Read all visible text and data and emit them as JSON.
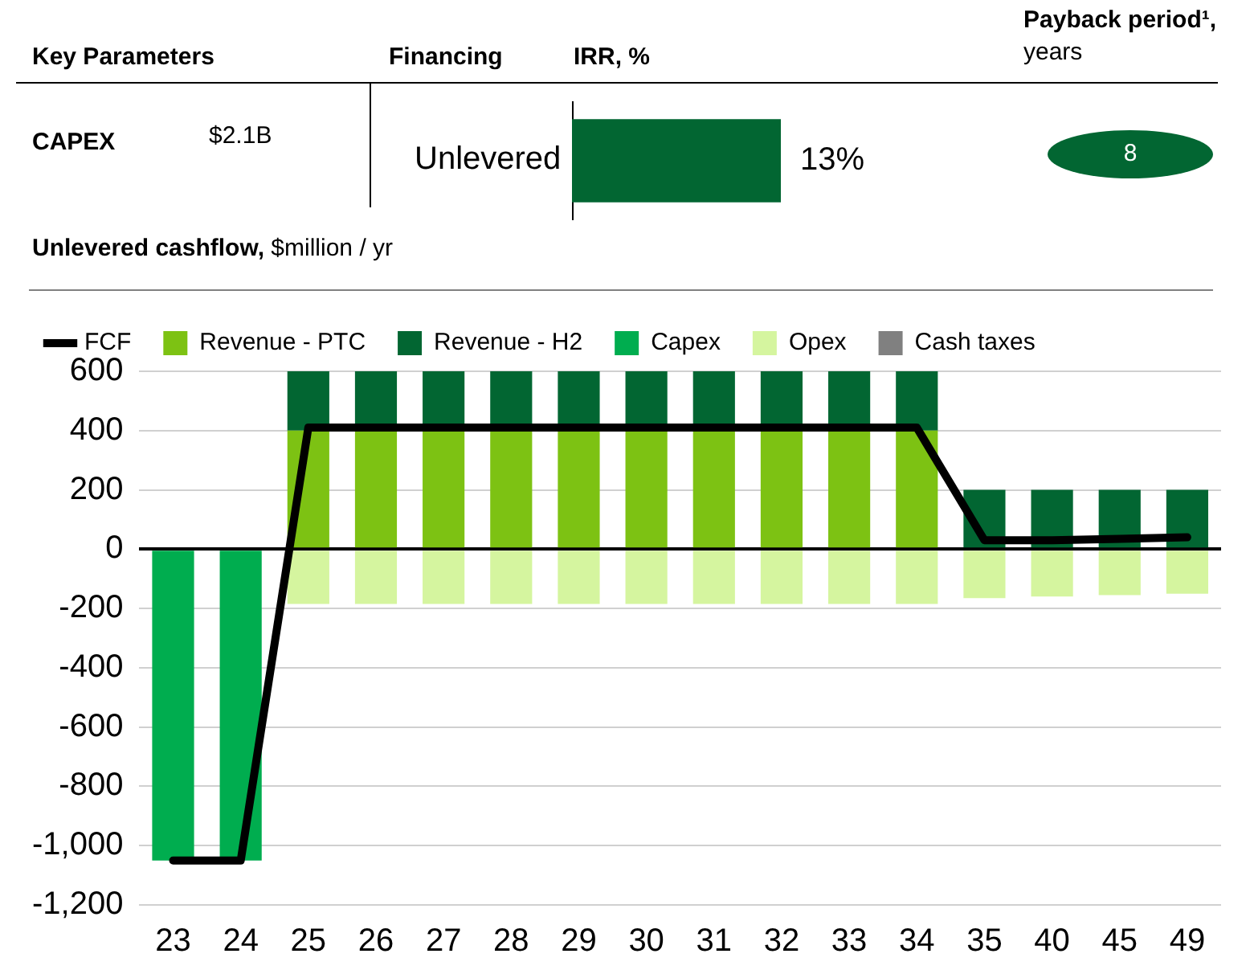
{
  "chart_data": [
    {
      "type": "other",
      "annotations": [
        "Key Parameters",
        "Financing",
        "Payback period¹,",
        "years",
        "CAPEX",
        "$2.1B",
        "8"
      ]
    },
    {
      "type": "bar",
      "orientation": "horizontal",
      "title": "IRR, %",
      "categories": [
        "Unlevered"
      ],
      "values": [
        13
      ],
      "value_labels": [
        "13%"
      ],
      "color": "#026632"
    },
    {
      "type": "bar",
      "stacked": true,
      "title": "Unlevered cashflow,",
      "subtitle": "$million / yr",
      "categories": [
        "23",
        "24",
        "25",
        "26",
        "27",
        "28",
        "29",
        "30",
        "31",
        "32",
        "33",
        "34",
        "35",
        "40",
        "45",
        "49"
      ],
      "series": [
        {
          "name": "Revenue - PTC",
          "color": "#7dc213",
          "values": [
            0,
            0,
            400,
            400,
            400,
            400,
            400,
            400,
            400,
            400,
            400,
            400,
            0,
            0,
            0,
            0
          ]
        },
        {
          "name": "Revenue - H2",
          "color": "#026632",
          "values": [
            0,
            0,
            200,
            200,
            200,
            200,
            200,
            200,
            200,
            200,
            200,
            200,
            200,
            200,
            200,
            200
          ]
        },
        {
          "name": "Capex",
          "color": "#00ad4f",
          "values": [
            -1050,
            -1050,
            0,
            0,
            0,
            0,
            0,
            0,
            0,
            0,
            0,
            0,
            0,
            0,
            0,
            0
          ]
        },
        {
          "name": "Opex",
          "color": "#d5f59f",
          "values": [
            0,
            0,
            -185,
            -185,
            -185,
            -185,
            -185,
            -185,
            -185,
            -185,
            -185,
            -185,
            -165,
            -160,
            -155,
            -150
          ]
        },
        {
          "name": "Cash taxes",
          "color": "#808080",
          "values": [
            0,
            0,
            0,
            0,
            0,
            0,
            0,
            0,
            0,
            0,
            0,
            0,
            0,
            0,
            0,
            0
          ]
        },
        {
          "name": "FCF",
          "type": "line",
          "color": "#000000",
          "values": [
            -1050,
            -1050,
            410,
            410,
            410,
            410,
            410,
            410,
            410,
            410,
            410,
            410,
            30,
            30,
            35,
            40
          ]
        }
      ],
      "ylim": [
        -1200,
        600
      ],
      "yticks": [
        600,
        400,
        200,
        0,
        -200,
        -400,
        -600,
        -800,
        {
          "value": -1000,
          "label": "-1,000"
        },
        {
          "value": -1200,
          "label": "-1,200"
        }
      ],
      "grid": "y",
      "legend": "top",
      "marker": "none"
    }
  ]
}
